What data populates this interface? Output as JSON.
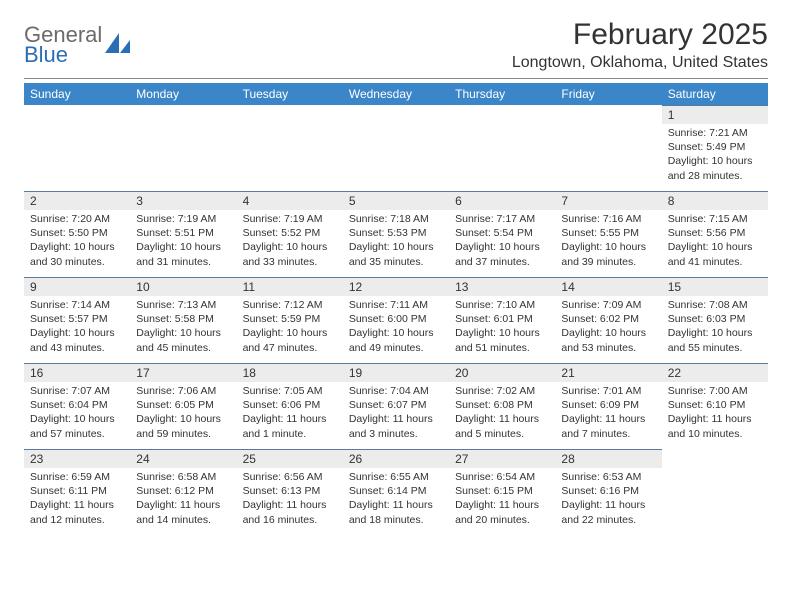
{
  "logo": {
    "word1": "General",
    "word2": "Blue"
  },
  "title": "February 2025",
  "location": "Longtown, Oklahoma, United States",
  "columns": [
    "Sunday",
    "Monday",
    "Tuesday",
    "Wednesday",
    "Thursday",
    "Friday",
    "Saturday"
  ],
  "colors": {
    "header_bg": "#3b86c8",
    "header_text": "#ffffff",
    "daynum_bg": "#ececec",
    "rule": "#5a7a9a",
    "logo_gray": "#6b6b6b",
    "logo_blue": "#2a6fb5"
  },
  "weeks": [
    [
      {
        "n": "",
        "lines": []
      },
      {
        "n": "",
        "lines": []
      },
      {
        "n": "",
        "lines": []
      },
      {
        "n": "",
        "lines": []
      },
      {
        "n": "",
        "lines": []
      },
      {
        "n": "",
        "lines": []
      },
      {
        "n": "1",
        "lines": [
          "Sunrise: 7:21 AM",
          "Sunset: 5:49 PM",
          "Daylight: 10 hours and 28 minutes."
        ]
      }
    ],
    [
      {
        "n": "2",
        "lines": [
          "Sunrise: 7:20 AM",
          "Sunset: 5:50 PM",
          "Daylight: 10 hours and 30 minutes."
        ]
      },
      {
        "n": "3",
        "lines": [
          "Sunrise: 7:19 AM",
          "Sunset: 5:51 PM",
          "Daylight: 10 hours and 31 minutes."
        ]
      },
      {
        "n": "4",
        "lines": [
          "Sunrise: 7:19 AM",
          "Sunset: 5:52 PM",
          "Daylight: 10 hours and 33 minutes."
        ]
      },
      {
        "n": "5",
        "lines": [
          "Sunrise: 7:18 AM",
          "Sunset: 5:53 PM",
          "Daylight: 10 hours and 35 minutes."
        ]
      },
      {
        "n": "6",
        "lines": [
          "Sunrise: 7:17 AM",
          "Sunset: 5:54 PM",
          "Daylight: 10 hours and 37 minutes."
        ]
      },
      {
        "n": "7",
        "lines": [
          "Sunrise: 7:16 AM",
          "Sunset: 5:55 PM",
          "Daylight: 10 hours and 39 minutes."
        ]
      },
      {
        "n": "8",
        "lines": [
          "Sunrise: 7:15 AM",
          "Sunset: 5:56 PM",
          "Daylight: 10 hours and 41 minutes."
        ]
      }
    ],
    [
      {
        "n": "9",
        "lines": [
          "Sunrise: 7:14 AM",
          "Sunset: 5:57 PM",
          "Daylight: 10 hours and 43 minutes."
        ]
      },
      {
        "n": "10",
        "lines": [
          "Sunrise: 7:13 AM",
          "Sunset: 5:58 PM",
          "Daylight: 10 hours and 45 minutes."
        ]
      },
      {
        "n": "11",
        "lines": [
          "Sunrise: 7:12 AM",
          "Sunset: 5:59 PM",
          "Daylight: 10 hours and 47 minutes."
        ]
      },
      {
        "n": "12",
        "lines": [
          "Sunrise: 7:11 AM",
          "Sunset: 6:00 PM",
          "Daylight: 10 hours and 49 minutes."
        ]
      },
      {
        "n": "13",
        "lines": [
          "Sunrise: 7:10 AM",
          "Sunset: 6:01 PM",
          "Daylight: 10 hours and 51 minutes."
        ]
      },
      {
        "n": "14",
        "lines": [
          "Sunrise: 7:09 AM",
          "Sunset: 6:02 PM",
          "Daylight: 10 hours and 53 minutes."
        ]
      },
      {
        "n": "15",
        "lines": [
          "Sunrise: 7:08 AM",
          "Sunset: 6:03 PM",
          "Daylight: 10 hours and 55 minutes."
        ]
      }
    ],
    [
      {
        "n": "16",
        "lines": [
          "Sunrise: 7:07 AM",
          "Sunset: 6:04 PM",
          "Daylight: 10 hours and 57 minutes."
        ]
      },
      {
        "n": "17",
        "lines": [
          "Sunrise: 7:06 AM",
          "Sunset: 6:05 PM",
          "Daylight: 10 hours and 59 minutes."
        ]
      },
      {
        "n": "18",
        "lines": [
          "Sunrise: 7:05 AM",
          "Sunset: 6:06 PM",
          "Daylight: 11 hours and 1 minute."
        ]
      },
      {
        "n": "19",
        "lines": [
          "Sunrise: 7:04 AM",
          "Sunset: 6:07 PM",
          "Daylight: 11 hours and 3 minutes."
        ]
      },
      {
        "n": "20",
        "lines": [
          "Sunrise: 7:02 AM",
          "Sunset: 6:08 PM",
          "Daylight: 11 hours and 5 minutes."
        ]
      },
      {
        "n": "21",
        "lines": [
          "Sunrise: 7:01 AM",
          "Sunset: 6:09 PM",
          "Daylight: 11 hours and 7 minutes."
        ]
      },
      {
        "n": "22",
        "lines": [
          "Sunrise: 7:00 AM",
          "Sunset: 6:10 PM",
          "Daylight: 11 hours and 10 minutes."
        ]
      }
    ],
    [
      {
        "n": "23",
        "lines": [
          "Sunrise: 6:59 AM",
          "Sunset: 6:11 PM",
          "Daylight: 11 hours and 12 minutes."
        ]
      },
      {
        "n": "24",
        "lines": [
          "Sunrise: 6:58 AM",
          "Sunset: 6:12 PM",
          "Daylight: 11 hours and 14 minutes."
        ]
      },
      {
        "n": "25",
        "lines": [
          "Sunrise: 6:56 AM",
          "Sunset: 6:13 PM",
          "Daylight: 11 hours and 16 minutes."
        ]
      },
      {
        "n": "26",
        "lines": [
          "Sunrise: 6:55 AM",
          "Sunset: 6:14 PM",
          "Daylight: 11 hours and 18 minutes."
        ]
      },
      {
        "n": "27",
        "lines": [
          "Sunrise: 6:54 AM",
          "Sunset: 6:15 PM",
          "Daylight: 11 hours and 20 minutes."
        ]
      },
      {
        "n": "28",
        "lines": [
          "Sunrise: 6:53 AM",
          "Sunset: 6:16 PM",
          "Daylight: 11 hours and 22 minutes."
        ]
      },
      {
        "n": "",
        "lines": []
      }
    ]
  ]
}
